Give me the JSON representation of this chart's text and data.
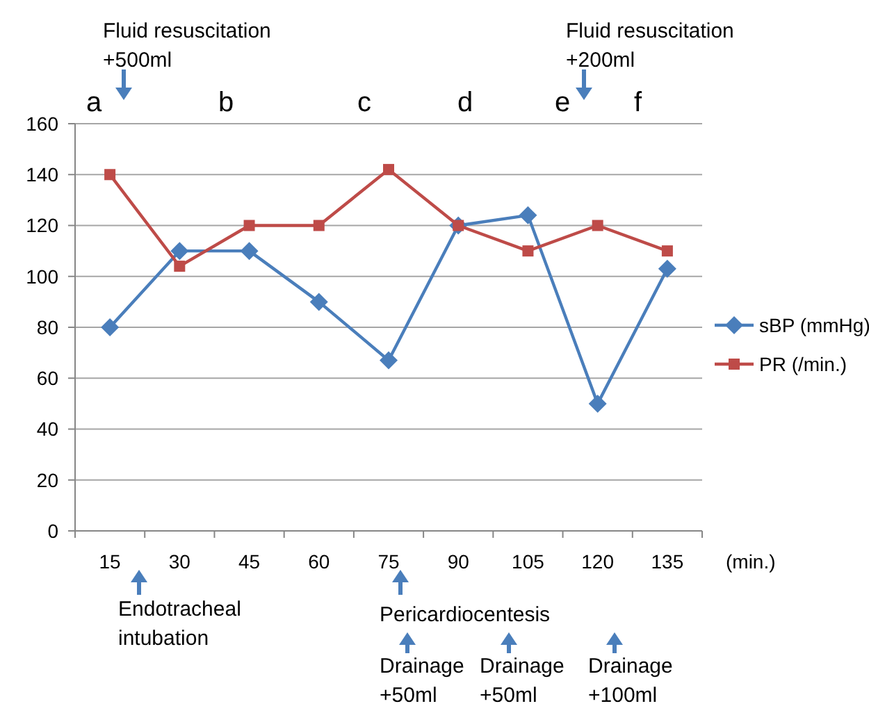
{
  "chart_data": {
    "type": "line",
    "xlabel": "(min.)",
    "categories": [
      "15",
      "30",
      "45",
      "60",
      "75",
      "90",
      "105",
      "120",
      "135"
    ],
    "series": [
      {
        "name": "sBP (mmHg)",
        "color": "#4a7ebb",
        "values": [
          80,
          110,
          110,
          90,
          67,
          120,
          124,
          50,
          103
        ],
        "marker": "diamond"
      },
      {
        "name": "PR (/min.)",
        "color": "#be4b48",
        "values": [
          140,
          104,
          120,
          120,
          142,
          120,
          110,
          120,
          110
        ],
        "marker": "square"
      }
    ],
    "ylim": [
      0,
      160
    ],
    "yticks": [
      0,
      20,
      40,
      60,
      80,
      100,
      120,
      140,
      160
    ],
    "grid": "y",
    "legend": "right",
    "line_style": "solid",
    "annotations": [
      "Fluid resuscitation\n+500ml",
      "Fluid resuscitation\n+200ml",
      "a",
      "b",
      "c",
      "d",
      "e",
      "f",
      "Endotracheal\nintubation",
      "Pericardiocentesis",
      "Drainage\n+50ml",
      "Drainage\n+50ml",
      "Drainage\n+100ml"
    ]
  }
}
